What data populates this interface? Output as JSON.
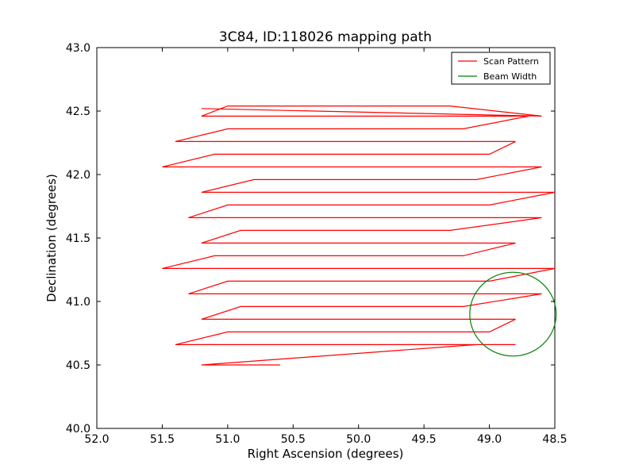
{
  "chart_data": {
    "type": "line",
    "title": "3C84, ID:118026 mapping path",
    "xlabel": "Right Ascension (degrees)",
    "ylabel": "Declination (degrees)",
    "xlim": [
      52.0,
      48.5
    ],
    "ylim": [
      40.0,
      43.0
    ],
    "x_inverted": true,
    "x_ticks": [
      "52.0",
      "51.5",
      "51.0",
      "50.5",
      "50.0",
      "49.5",
      "49.0",
      "48.5"
    ],
    "y_ticks": [
      "40.0",
      "40.5",
      "41.0",
      "41.5",
      "42.0",
      "42.5",
      "43.0"
    ],
    "x_tick_values": [
      52.0,
      51.5,
      51.0,
      50.5,
      50.0,
      49.5,
      49.0,
      48.5
    ],
    "y_tick_values": [
      40.0,
      40.5,
      41.0,
      41.5,
      42.0,
      42.5,
      43.0
    ],
    "legend": {
      "placement": "top-right",
      "entries": [
        "Scan Pattern",
        "Beam Width"
      ]
    },
    "series": [
      {
        "name": "Scan Pattern",
        "color": "#ff0000",
        "kind": "line",
        "x": [
          50.6,
          51.0,
          51.2,
          49.1,
          48.8,
          51.4,
          51.0,
          49.0,
          48.8,
          51.2,
          50.9,
          49.2,
          48.6,
          51.3,
          51.0,
          49.0,
          48.5,
          51.5,
          51.1,
          49.2,
          48.8,
          51.2,
          50.9,
          49.3,
          48.6,
          51.3,
          51.0,
          49.0,
          48.5,
          51.2,
          50.8,
          49.1,
          48.6,
          51.5,
          51.1,
          49.0,
          48.8,
          51.4,
          51.0,
          49.2,
          48.7,
          51.2,
          51.0,
          49.3,
          48.6,
          51.2
        ],
        "y": [
          40.5,
          40.5,
          40.5,
          40.66,
          40.66,
          40.66,
          40.76,
          40.76,
          40.86,
          40.86,
          40.96,
          40.96,
          41.06,
          41.06,
          41.16,
          41.16,
          41.26,
          41.26,
          41.36,
          41.36,
          41.46,
          41.46,
          41.56,
          41.56,
          41.66,
          41.66,
          41.76,
          41.76,
          41.86,
          41.86,
          41.96,
          41.96,
          42.06,
          42.06,
          42.16,
          42.16,
          42.26,
          42.26,
          42.36,
          42.36,
          42.46,
          42.46,
          42.54,
          42.54,
          42.46,
          42.52
        ]
      },
      {
        "name": "Beam Width",
        "color": "#008000",
        "kind": "circle",
        "center": [
          48.82,
          40.9
        ],
        "radius": 0.33
      }
    ],
    "grid": false
  }
}
